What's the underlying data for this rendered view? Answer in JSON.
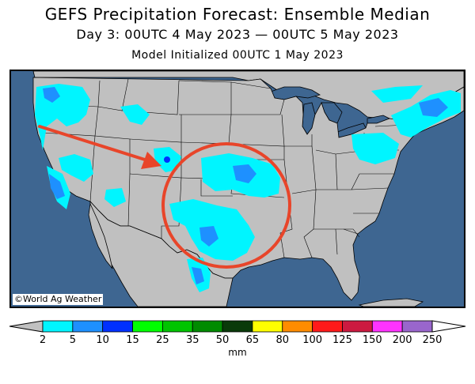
{
  "header": {
    "title": "GEFS Precipitation Forecast: Ensemble Median",
    "subtitle": "Day 3: 00UTC 4 May 2023 — 00UTC 5 May 2023",
    "init": "Model Initialized 00UTC 1 May 2023"
  },
  "map": {
    "region": "Contiguous United States",
    "copyright": "©World Ag Weather",
    "colors": {
      "ocean": "#3e6691",
      "land": "#c0c0c0",
      "annotation": "#e8452a"
    },
    "annotations": [
      "red-arrow",
      "red-circle"
    ]
  },
  "legend": {
    "ticks": [
      "2",
      "5",
      "10",
      "15",
      "25",
      "35",
      "50",
      "65",
      "80",
      "100",
      "125",
      "150",
      "200",
      "250"
    ],
    "colors": [
      "#00f5ff",
      "#1e90ff",
      "#0030ff",
      "#00ff00",
      "#00c400",
      "#008b00",
      "#0a3a0a",
      "#ffff00",
      "#ff8c00",
      "#ff1a1a",
      "#cc1a40",
      "#ff33ff",
      "#9966cc"
    ],
    "units": "mm"
  }
}
